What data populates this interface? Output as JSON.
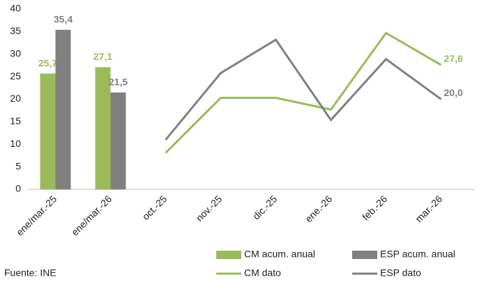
{
  "chart_data": {
    "type": "bar",
    "categories": [
      "ene/mar.-25",
      "ene/mar.-26",
      "oct.-25",
      "nov.-25",
      "dic.-25",
      "ene.-26",
      "feb.-26",
      "mar.-26"
    ],
    "series": [
      {
        "name": "CM acum. anual",
        "type": "bar",
        "color": "#9bbb59",
        "values": [
          25.7,
          27.1,
          null,
          null,
          null,
          null,
          null,
          null
        ],
        "value_labels": [
          "25,7",
          "27,1",
          null,
          null,
          null,
          null,
          null,
          null
        ]
      },
      {
        "name": "ESP acum. anual",
        "type": "bar",
        "color": "#808080",
        "values": [
          35.4,
          21.5,
          null,
          null,
          null,
          null,
          null,
          null
        ],
        "value_labels": [
          "35,4",
          "21,5",
          null,
          null,
          null,
          null,
          null,
          null
        ]
      },
      {
        "name": "CM dato",
        "type": "line",
        "color": "#9bbb59",
        "values": [
          null,
          null,
          8.1,
          20.3,
          20.3,
          17.7,
          34.7,
          27.6
        ],
        "value_labels": [
          null,
          null,
          null,
          null,
          null,
          null,
          null,
          "27,6"
        ]
      },
      {
        "name": "ESP dato",
        "type": "line",
        "color": "#808080",
        "values": [
          null,
          null,
          11.0,
          25.8,
          33.2,
          15.4,
          28.9,
          20.0
        ],
        "value_labels": [
          null,
          null,
          null,
          null,
          null,
          null,
          null,
          "20,0"
        ]
      }
    ],
    "ylim": [
      0,
      40
    ],
    "yticks": [
      0,
      5,
      10,
      15,
      20,
      25,
      30,
      35,
      40
    ],
    "legend": "bottom",
    "source": "Fuente: INE"
  }
}
